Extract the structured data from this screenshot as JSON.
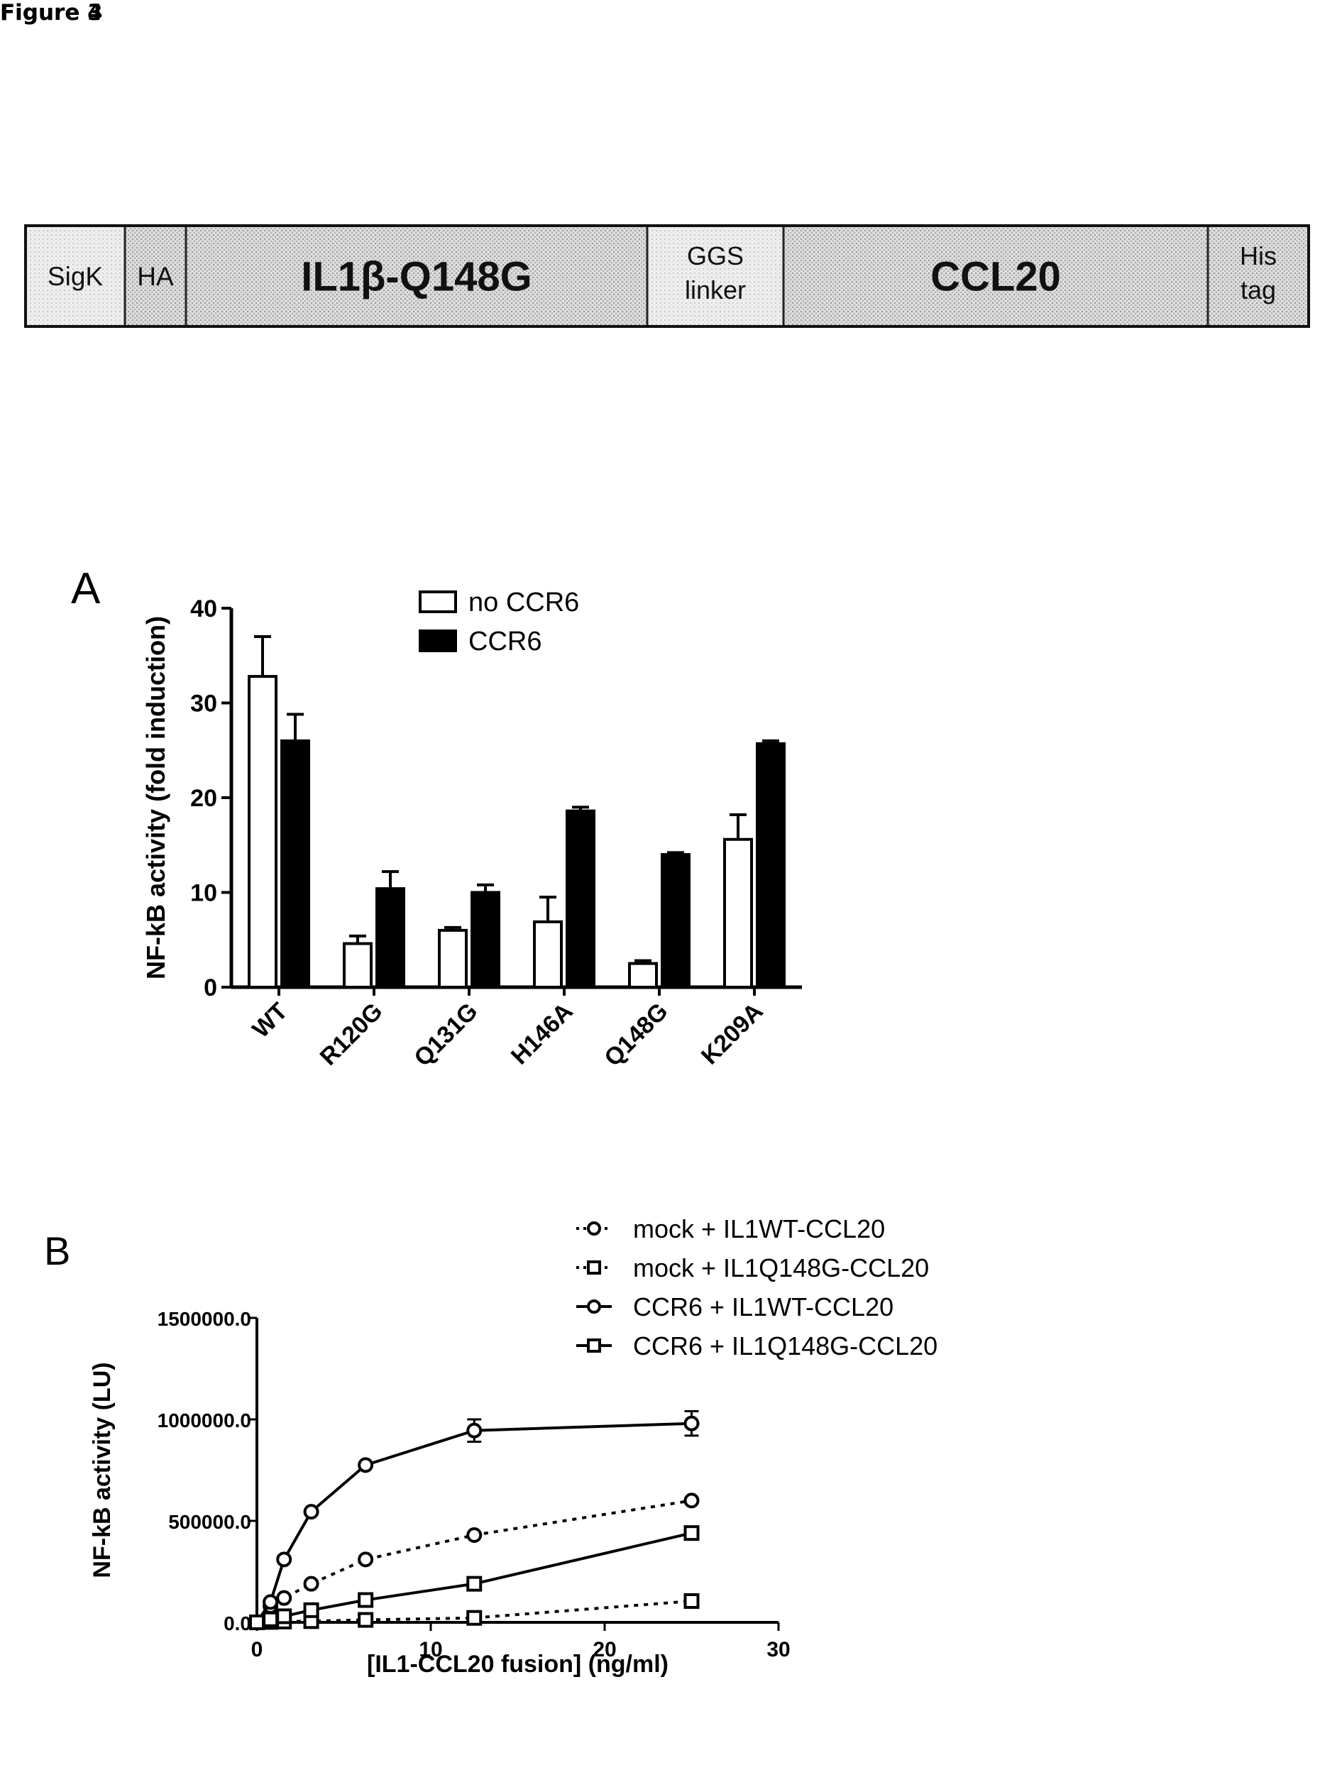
{
  "figure3": {
    "label": "Figure 3",
    "segments": [
      {
        "id": "sigk",
        "lines": [
          "SigK"
        ]
      },
      {
        "id": "ha",
        "lines": [
          "HA"
        ]
      },
      {
        "id": "il1b",
        "lines": [
          "IL1β-Q148G"
        ]
      },
      {
        "id": "ggs",
        "lines": [
          "GGS",
          "linker"
        ]
      },
      {
        "id": "ccl20",
        "lines": [
          "CCL20"
        ]
      },
      {
        "id": "histag",
        "lines": [
          "His",
          "tag"
        ]
      }
    ]
  },
  "figure4": {
    "label": "Figure 4",
    "panelA_letter": "A",
    "panelB_letter": "B"
  },
  "chart_data": [
    {
      "type": "bar",
      "panel": "A",
      "ylabel": "NF-kB activity (fold induction)",
      "ylim": [
        0,
        40
      ],
      "yticks": [
        "0",
        "10",
        "20",
        "30",
        "40"
      ],
      "categories": [
        "WT",
        "R120G",
        "Q131G",
        "H146A",
        "Q148G",
        "K209A"
      ],
      "legend": "top",
      "series": [
        {
          "name": "no CCR6",
          "fill": "#ffffff",
          "values": [
            32.8,
            4.6,
            6.0,
            6.9,
            2.5,
            15.6
          ],
          "errors": [
            4.2,
            0.8,
            0.3,
            2.6,
            0.3,
            2.6
          ]
        },
        {
          "name": "CCR6",
          "fill": "#000000",
          "values": [
            26.0,
            10.4,
            10.0,
            18.6,
            14.0,
            25.7
          ],
          "errors": [
            2.8,
            1.8,
            0.8,
            0.4,
            0.2,
            0.3
          ]
        }
      ]
    },
    {
      "type": "line",
      "panel": "B",
      "xlabel": "[IL1-CCL20 fusion] (ng/ml)",
      "ylabel": "NF-kB activity (LU)",
      "xlim": [
        0,
        30
      ],
      "ylim": [
        0,
        1500000
      ],
      "xticks": [
        "0",
        "10",
        "20",
        "30"
      ],
      "yticks": [
        "0.0",
        "500000.0",
        "1000000.0",
        "1500000.0"
      ],
      "legend": "top-right",
      "x": [
        0,
        0.78,
        1.56,
        3.125,
        6.25,
        12.5,
        25
      ],
      "series": [
        {
          "name": "mock + IL1WT-CCL20",
          "marker": "circle",
          "dash": "dotted",
          "values": [
            0,
            80000,
            120000,
            190000,
            310000,
            430000,
            600000
          ]
        },
        {
          "name": "mock + IL1Q148G-CCL20",
          "marker": "square",
          "dash": "dotted",
          "values": [
            0,
            2000,
            4000,
            6000,
            12000,
            22000,
            105000
          ]
        },
        {
          "name": "CCR6 + IL1WT-CCL20",
          "marker": "circle",
          "dash": "solid",
          "values": [
            0,
            100000,
            310000,
            545000,
            775000,
            945000,
            980000
          ],
          "errors": [
            0,
            5000,
            10000,
            15000,
            15000,
            55000,
            60000
          ]
        },
        {
          "name": "CCR6 + IL1Q148G-CCL20",
          "marker": "square",
          "dash": "solid",
          "values": [
            0,
            15000,
            30000,
            60000,
            110000,
            190000,
            440000
          ]
        }
      ]
    }
  ]
}
